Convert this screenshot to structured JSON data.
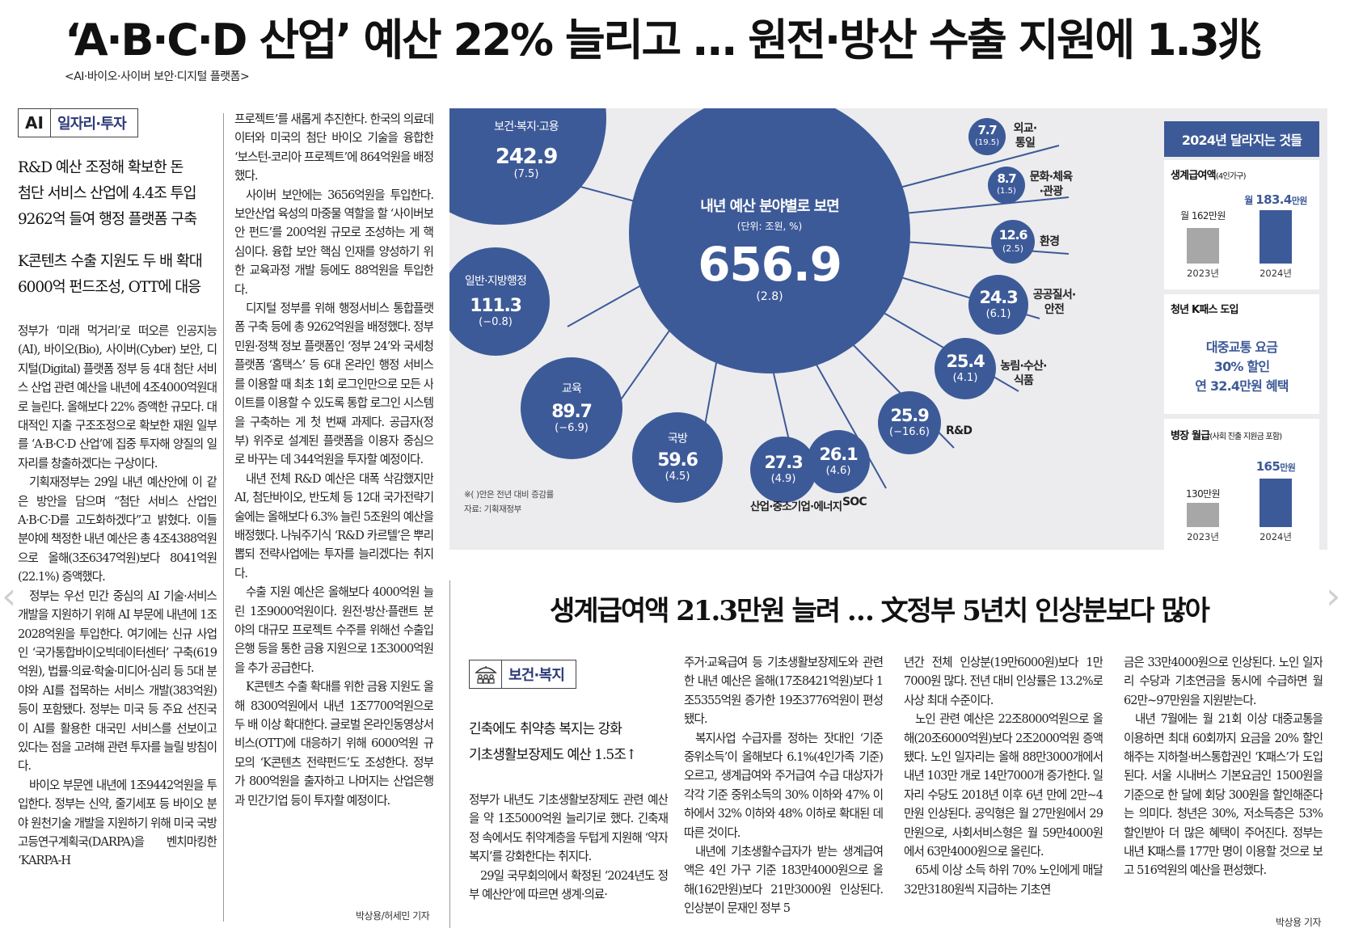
{
  "headline": "‘A·B·C·D 산업’ 예산 22% 늘리고 … 원전·방산 수출 지원에 1.3兆",
  "subhead": "<AI·바이오·사이버 보안·디지털 플랫폼>",
  "section1": {
    "icon": "AI",
    "label": "일자리·투자"
  },
  "deck1": [
    "R&D 예산 조정해 확보한 돈",
    "첨단 서비스 산업에 4.4조 투입",
    "9262억 들여 행정 플랫폼 구축"
  ],
  "deck1b": [
    "K콘텐츠 수출 지원도 두 배 확대",
    "6000억 펀드조성, OTT에 대응"
  ],
  "col1": [
    "정부가 ‘미래 먹거리’로 떠오른 인공지능(AI), 바이오(Bio), 사이버(Cyber) 보안, 디지털(Digital) 플랫폼 정부 등 4대 첨단 서비스 산업 관련 예산을 내년에 4조4000억원대로 늘린다. 올해보다 22% 증액한 규모다. 대대적인 지출 구조조정으로 확보한 재원 일부를 ‘A·B·C·D 산업’에 집중 투자해 양질의 일자리를 창출하겠다는 구상이다.",
    "기획재정부는 29일 내년 예산안에 이 같은 방안을 담으며 “첨단 서비스 산업인 A·B·C·D를 고도화하겠다”고 밝혔다. 이들 분야에 책정한 내년 예산은 총 4조4388억원으로 올해(3조6347억원)보다 8041억원(22.1%) 증액했다.",
    "정부는 우선 민간 중심의 AI 기술·서비스 개발을 지원하기 위해 AI 부문에 내년에 1조2028억원을 투입한다. 여기에는 신규 사업인 ‘국가통합바이오빅데이터센터’ 구축(619억원), 법률·의료·학술·미디어·심리 등 5대 분야와 AI를 접목하는 서비스 개발(383억원) 등이 포함됐다. 정부는 미국 등 주요 선진국이 AI를 활용한 대국민 서비스를 선보이고 있다는 점을 고려해 관련 투자를 늘릴 방침이다.",
    "바이오 부문엔 내년에 1조9442억원을 투입한다. 정부는 신약, 줄기세포 등 바이오 분야 원천기술 개발을 지원하기 위해 미국 국방고등연구계획국(DARPA)을 벤치마킹한 ‘KARPA-H"
  ],
  "col2": [
    "프로젝트’를 새롭게 추진한다. 한국의 의료데이터와 미국의 첨단 바이오 기술을 융합한 ‘보스턴-코리아 프로젝트’에 864억원을 배정했다.",
    "사이버 보안에는 3656억원을 투입한다. 보안산업 육성의 마중물 역할을 할 ‘사이버보안 펀드’를 200억원 규모로 조성하는 게 핵심이다. 융합 보안 핵심 인재를 양성하기 위한 교육과정 개발 등에도 88억원을 투입한다.",
    "디지털 정부를 위해 행정서비스 통합플랫폼 구축 등에 총 9262억원을 배정했다. 정부 민원·정책 정보 플랫폼인 ‘정부 24’와 국세청 플랫폼 ‘홈택스’ 등 6대 온라인 행정 서비스를 이용할 때 최초 1회 로그인만으로 모든 사이트를 이용할 수 있도록 통합 로그인 시스템을 구축하는 게 첫 번째 과제다. 공급자(정부) 위주로 설계된 플랫폼을 이용자 중심으로 바꾸는 데 344억원을 투자할 예정이다.",
    "내년 전체 R&D 예산은 대폭 삭감했지만 AI, 첨단바이오, 반도체 등 12대 국가전략기술에는 올해보다 6.3% 늘린 5조원의 예산을 배정했다. 나눠주기식 ‘R&D 카르텔’은 뿌리 뽑되 전략사업에는 투자를 늘리겠다는 취지다.",
    "수출 지원 예산은 올해보다 4000억원 늘린 1조9000억원이다. 원전·방산·플랜트 분야의 대규모 프로젝트 수주를 위해선 수출입은행 등을 통한 금융 지원으로 1조3000억원을 추가 공급한다.",
    "K콘텐츠 수출 확대를 위한 금융 지원도 올해 8300억원에서 내년 1조7700억원으로 두 배 이상 확대한다. 글로벌 온라인동영상서비스(OTT)에 대응하기 위해 6000억원 규모의 ‘K콘텐츠 전략펀드’도 조성한다. 정부가 800억원을 출자하고 나머지는 산업은행과 민간기업 등이 투자할 예정이다."
  ],
  "byline1": "박상용/허세민 기자",
  "chart_data": {
    "type": "bubble",
    "title": "내년 예산 분야별로 보면",
    "unit": "(단위: 조원, %)",
    "total": {
      "value": "656.9",
      "change": "(2.8)"
    },
    "categories": [
      {
        "name": "보건·복지·고용",
        "value": "242.9",
        "change": "(7.5)"
      },
      {
        "name": "일반·지방행정",
        "value": "111.3",
        "change": "(−0.8)"
      },
      {
        "name": "교육",
        "value": "89.7",
        "change": "(−6.9)"
      },
      {
        "name": "국방",
        "value": "59.6",
        "change": "(4.5)"
      },
      {
        "name": "산업·중소기업·에너지",
        "value": "27.3",
        "change": "(4.9)"
      },
      {
        "name": "SOC",
        "value": "26.1",
        "change": "(4.6)"
      },
      {
        "name": "R&D",
        "value": "25.9",
        "change": "(−16.6)"
      },
      {
        "name": "농림·수산·식품",
        "value": "25.4",
        "change": "(4.1)"
      },
      {
        "name": "공공질서·안전",
        "value": "24.3",
        "change": "(6.1)"
      },
      {
        "name": "환경",
        "value": "12.6",
        "change": "(2.5)"
      },
      {
        "name": "문화·체육·관광",
        "value": "8.7",
        "change": "(1.5)"
      },
      {
        "name": "외교·통일",
        "value": "7.7",
        "change": "(19.5)"
      }
    ],
    "note": "※( )안은 전년 대비 증감률",
    "source": "자료: 기획재정부"
  },
  "panel": {
    "title": "2024년 달라지는 것들",
    "box1": {
      "title": "생계급여액",
      "small": "(4인가구)",
      "v2023": "월 162만원",
      "v2024_a": "월 ",
      "v2024_b": "183.4",
      "v2024_c": "만원",
      "y1": "2023년",
      "y2": "2024년"
    },
    "box2": {
      "title": "청년 K패스 도입",
      "lines": [
        "대중교통 요금",
        "30% 할인",
        "연 32.4만원 혜택"
      ]
    },
    "box3": {
      "title": "병장 월급",
      "small": "(사회 진출 지원금 포함)",
      "v2023": "130만원",
      "v2024_a": "165",
      "v2024_b": "만원",
      "y1": "2023년",
      "y2": "2024년"
    },
    "colors": {
      "bar2023": "#a7a7a7",
      "bar2024": "#3d5a98"
    }
  },
  "sub_headline": "생계급여액 21.3만원 늘려 … 文정부 5년치 인상분보다 많아",
  "section2": {
    "label": "보건·복지"
  },
  "deck2": [
    "긴축에도 취약층 복지는 강화",
    "기초생활보장제도 예산 1.5조↑"
  ],
  "col3": [
    "정부가 내년도 기초생활보장제도 관련 예산을 약 1조5000억원 늘리기로 했다. 긴축재정 속에서도 취약계층을 두텁게 지원해 ‘약자 복지’를 강화한다는 취지다.",
    "29일 국무회의에서 확정된 ‘2024년도 정부 예산안’에 따르면 생계·의료·"
  ],
  "col4": [
    "주거·교육급여 등 기초생활보장제도와 관련한 내년 예산은 올해(17조8421억원)보다 1조5355억원 증가한 19조3776억원이 편성됐다.",
    "복지사업 수급자를 정하는 잣대인 ‘기준 중위소득’이 올해보다 6.1%(4인가족 기준) 오르고, 생계급여와 주거급여 수급 대상자가 각각 기준 중위소득의 30% 이하와 47% 이하에서 32% 이하와 48% 이하로 확대된 데 따른 것이다.",
    "내년에 기초생활수급자가 받는 생계급여액은 4인 가구 기준 183만4000원으로 올해(162만원)보다 21만3000원 인상된다. 인상분이 문재인 정부 5"
  ],
  "col5": [
    "년간 전체 인상분(19만6000원)보다 1만7000원 많다. 전년 대비 인상률은 13.2%로 사상 최대 수준이다.",
    "노인 관련 예산은 22조8000억원으로 올해(20조6000억원)보다 2조2000억원 증액됐다. 노인 일자리는 올해 88만3000개에서 내년 103만 개로 14만7000개 증가한다. 일자리 수당도 2018년 이후 6년 만에 2만~4만원 인상된다. 공익형은 월 27만원에서 29만원으로, 사회서비스형은 월 59만4000원에서 63만4000원으로 올린다.",
    "65세 이상 소득 하위 70% 노인에게 매달 32만3180원씩 지급하는 기초연"
  ],
  "col6": [
    "금은 33만4000원으로 인상된다. 노인 일자리 수당과 기초연금을 동시에 수급하면 월 62만~97만원을 지원받는다.",
    "내년 7월에는 월 21회 이상 대중교통을 이용하면 최대 60회까지 요금을 20% 할인해주는 지하철·버스통합권인 ‘K패스’가 도입된다. 서울 시내버스 기본요금인 1500원을 기준으로 한 달에 회당 300원을 할인해준다는 의미다. 청년은 30%, 저소득층은 53% 할인받아 더 많은 혜택이 주어진다. 정부는 내년 K패스를 177만 명이 이용할 것으로 보고 516억원의 예산을 편성했다."
  ],
  "byline2": "박상용 기자"
}
